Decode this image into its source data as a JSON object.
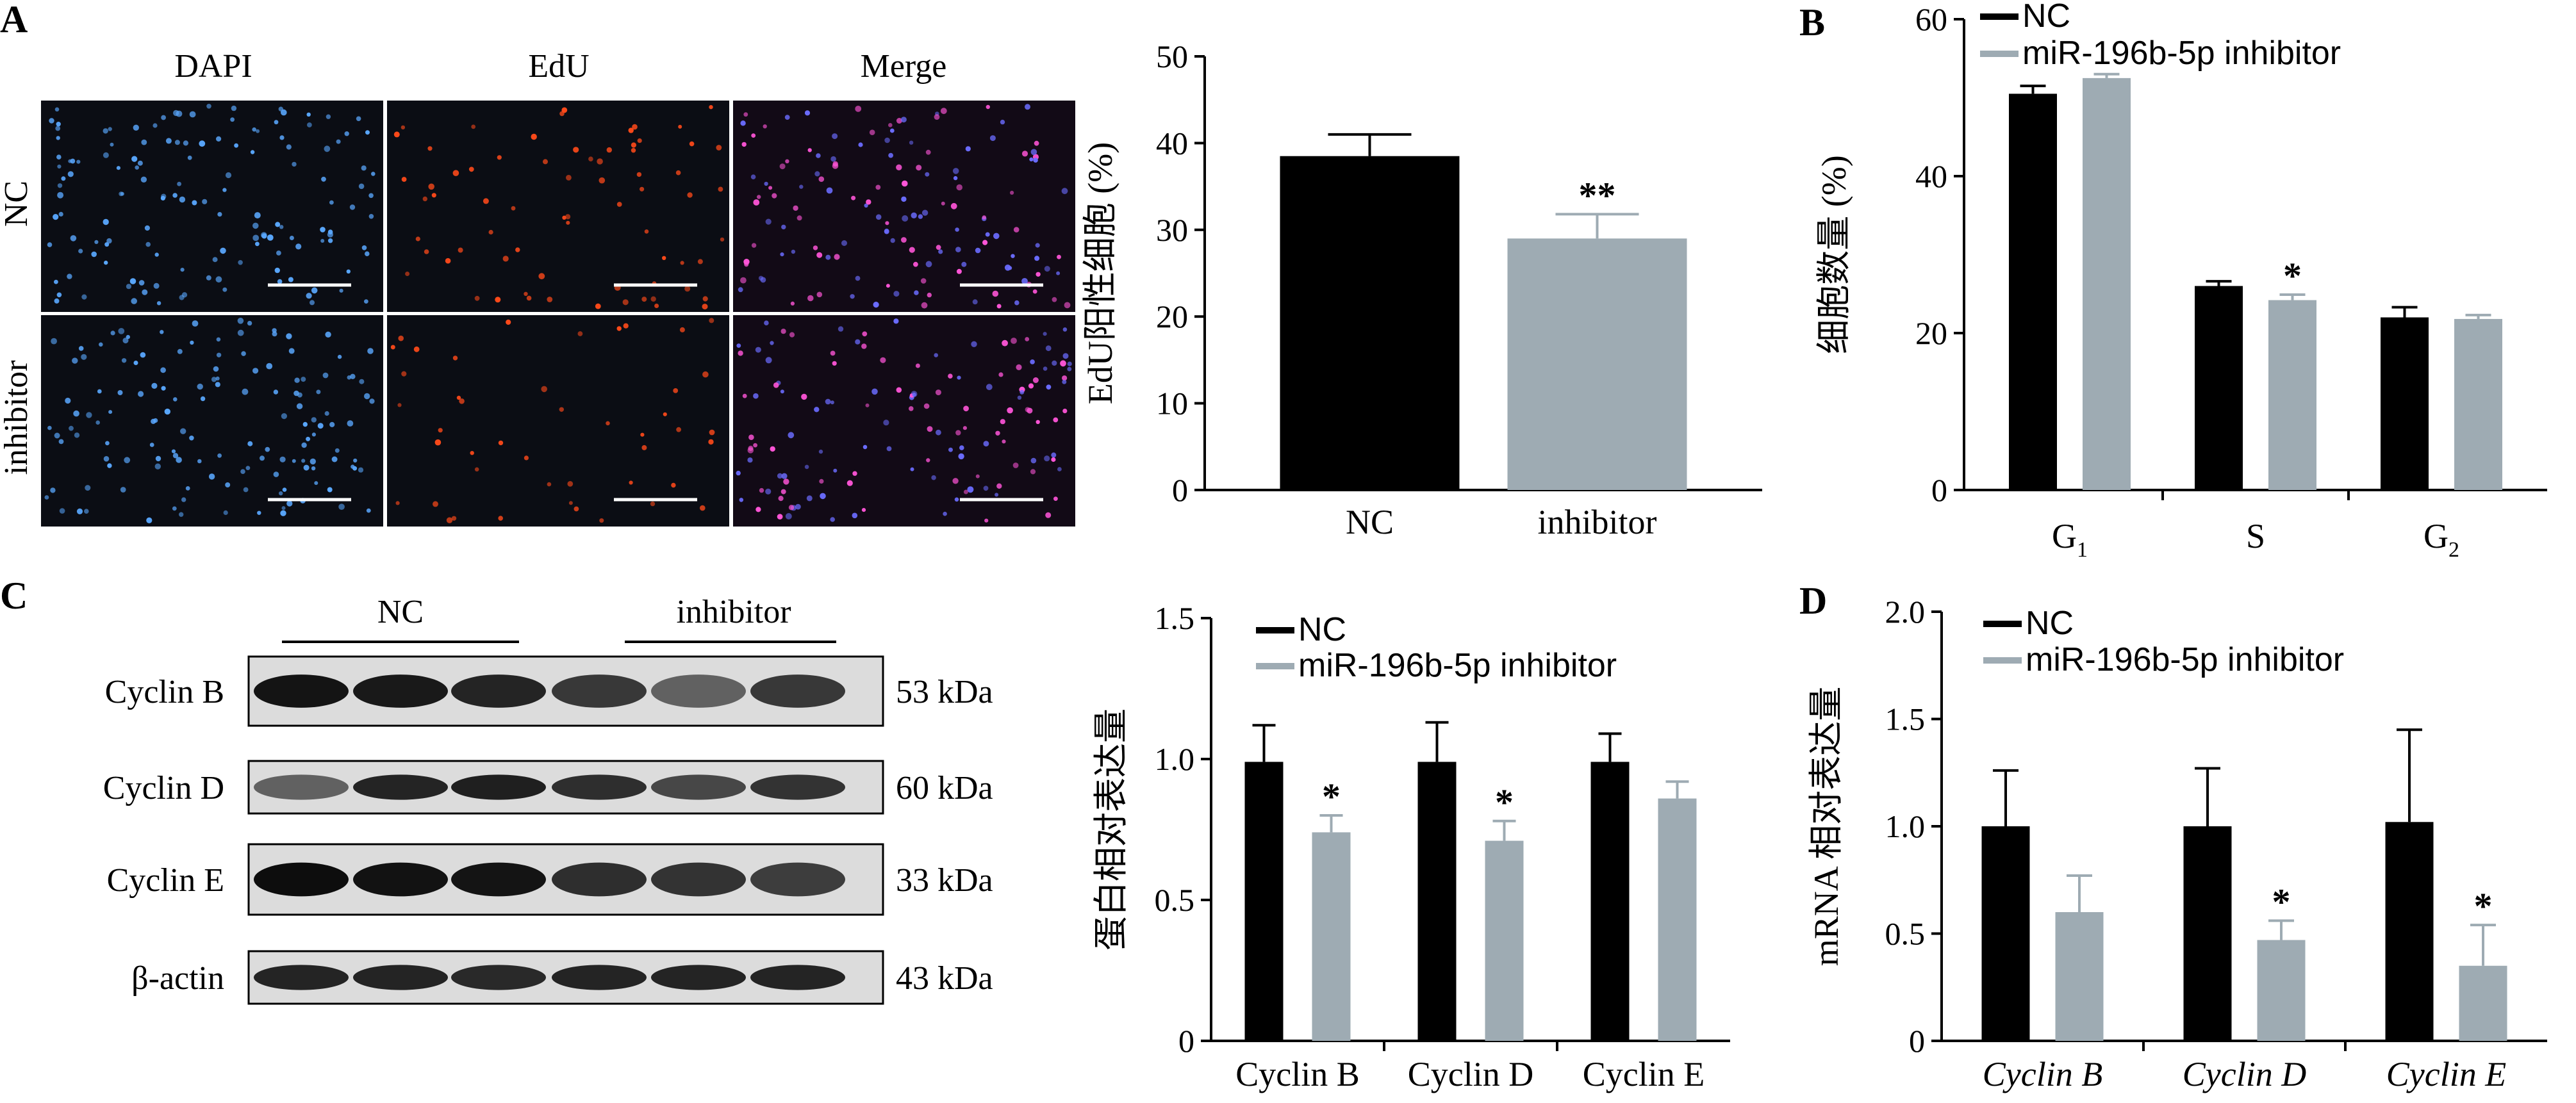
{
  "panels": {
    "A": {
      "letter": "A",
      "column_titles": [
        "DAPI",
        "EdU",
        "Merge"
      ],
      "row_labels": [
        "NC",
        "inhibitor"
      ],
      "channel_colors": {
        "dapi": "#5aa8ff",
        "edu": "#ff4a1a",
        "merge": "#ff55d8"
      }
    },
    "B": {
      "letter": "B"
    },
    "C": {
      "letter": "C",
      "group_labels": [
        "NC",
        "inhibitor"
      ],
      "rows": [
        {
          "protein": "Cyclin B",
          "size": "53 kDa",
          "intensity": [
            0.92,
            0.9,
            0.86,
            0.78,
            0.62,
            0.78
          ]
        },
        {
          "protein": "Cyclin D",
          "size": "60 kDa",
          "intensity": [
            0.62,
            0.86,
            0.88,
            0.82,
            0.72,
            0.8
          ]
        },
        {
          "protein": "Cyclin E",
          "size": "33 kDa",
          "intensity": [
            0.95,
            0.93,
            0.92,
            0.82,
            0.8,
            0.76
          ]
        },
        {
          "protein": "β-actin",
          "size": "43 kDa",
          "intensity": [
            0.86,
            0.86,
            0.84,
            0.86,
            0.86,
            0.86
          ]
        }
      ]
    },
    "D": {
      "letter": "D"
    }
  },
  "chart_data": [
    {
      "panel": "A",
      "type": "bar",
      "categories": [
        "NC",
        "inhibitor"
      ],
      "values": [
        38.5,
        29.0
      ],
      "errors": [
        2.5,
        2.8
      ],
      "colors": [
        "#000000",
        "#9eabb3"
      ],
      "annotations": [
        "",
        "**"
      ],
      "ylabel": "EdU阳性细胞 (%)",
      "ylim": [
        0,
        50
      ],
      "yticks": [
        0,
        10,
        20,
        30,
        40,
        50
      ]
    },
    {
      "panel": "B",
      "type": "bar",
      "categories": [
        "G1",
        "S",
        "G2"
      ],
      "category_base": [
        "G",
        "S",
        "G"
      ],
      "category_sub": [
        "1",
        "",
        "2"
      ],
      "series": [
        {
          "name": "NC",
          "color": "#000000",
          "values": [
            50.5,
            26.0,
            22.0
          ],
          "errors": [
            1.0,
            0.6,
            1.3
          ],
          "annotations": [
            "",
            "",
            ""
          ]
        },
        {
          "name": "miR-196b-5p inhibitor",
          "color": "#9eabb3",
          "values": [
            52.5,
            24.2,
            21.8
          ],
          "errors": [
            0.5,
            0.7,
            0.5
          ],
          "annotations": [
            "",
            "*",
            ""
          ]
        }
      ],
      "ylabel": "细胞数量 (%)",
      "ylim": [
        0,
        60
      ],
      "yticks": [
        0,
        20,
        40,
        60
      ],
      "legend": "top-left"
    },
    {
      "panel": "C",
      "type": "bar",
      "categories": [
        "Cyclin B",
        "Cyclin D",
        "Cyclin E"
      ],
      "series": [
        {
          "name": "NC",
          "color": "#000000",
          "values": [
            0.99,
            0.99,
            0.99
          ],
          "errors": [
            0.13,
            0.14,
            0.1
          ],
          "annotations": [
            "",
            "",
            ""
          ]
        },
        {
          "name": "miR-196b-5p inhibitor",
          "color": "#9eabb3",
          "values": [
            0.74,
            0.71,
            0.86
          ],
          "errors": [
            0.06,
            0.07,
            0.06
          ],
          "annotations": [
            "*",
            "*",
            ""
          ]
        }
      ],
      "ylabel": "蛋白相对表达量",
      "ylim": [
        0,
        1.5
      ],
      "yticks": [
        "0",
        "0.5",
        "1.0",
        "1.5"
      ],
      "legend": "top-left"
    },
    {
      "panel": "D",
      "type": "bar",
      "categories": [
        "Cyclin B",
        "Cyclin D",
        "Cyclin E"
      ],
      "categories_italic": true,
      "series": [
        {
          "name": "NC",
          "color": "#000000",
          "values": [
            1.0,
            1.0,
            1.02
          ],
          "errors": [
            0.26,
            0.27,
            0.43
          ],
          "annotations": [
            "",
            "",
            ""
          ]
        },
        {
          "name": "miR-196b-5p inhibitor",
          "color": "#9eabb3",
          "values": [
            0.6,
            0.47,
            0.35
          ],
          "errors": [
            0.17,
            0.09,
            0.19
          ],
          "annotations": [
            "",
            "*",
            "*"
          ]
        }
      ],
      "ylabel": "mRNA 相对表达量",
      "ylim": [
        0,
        2.0
      ],
      "yticks": [
        "0",
        "0.5",
        "1.0",
        "1.5",
        "2.0"
      ],
      "legend": "top-left"
    }
  ]
}
